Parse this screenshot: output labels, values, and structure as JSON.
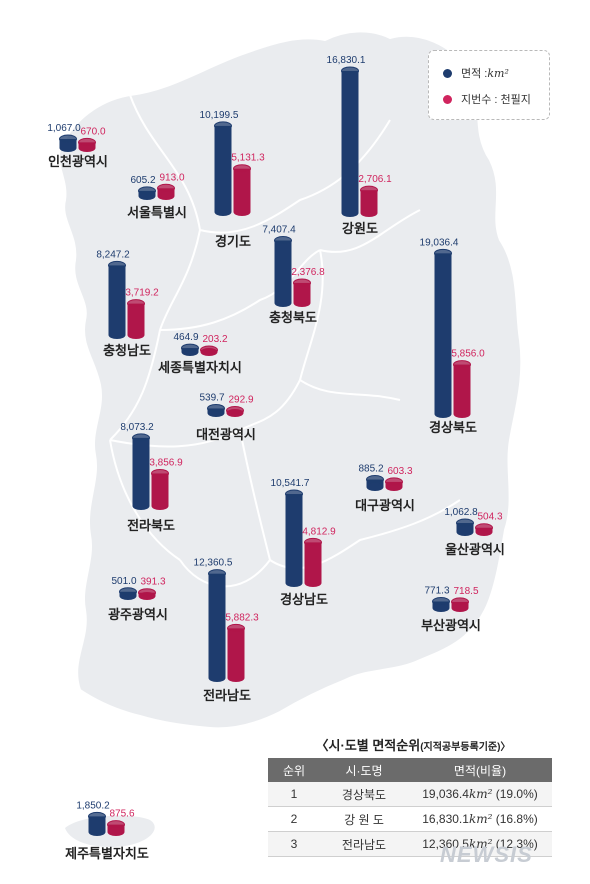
{
  "legend": {
    "area_label": "면적 : ",
    "area_unit": "km²",
    "parcel_label": "지번수 : 천필지"
  },
  "colors": {
    "area": "#1e3c6e",
    "parcels": "#b0164a",
    "area_text": "#1e3c6e",
    "parcel_text": "#d0245e",
    "map": "#eaecef",
    "map_border": "#ffffff"
  },
  "chart_data": {
    "type": "bar",
    "series": [
      {
        "name": "면적",
        "unit": "km²",
        "key": "area"
      },
      {
        "name": "지번수",
        "unit": "천필지",
        "key": "parcels"
      }
    ],
    "regions": [
      {
        "name": "인천광역시",
        "area": "1,067.0",
        "parcels": "670.0"
      },
      {
        "name": "서울특별시",
        "area": "605.2",
        "parcels": "913.0"
      },
      {
        "name": "경기도",
        "area": "10,199.5",
        "parcels": "5,131.3"
      },
      {
        "name": "강원도",
        "area": "16,830.1",
        "parcels": "2,706.1"
      },
      {
        "name": "충청북도",
        "area": "7,407.4",
        "parcels": "2,376.8"
      },
      {
        "name": "충청남도",
        "area": "8,247.2",
        "parcels": "3,719.2"
      },
      {
        "name": "세종특별자치시",
        "area": "464.9",
        "parcels": "203.2"
      },
      {
        "name": "대전광역시",
        "area": "539.7",
        "parcels": "292.9"
      },
      {
        "name": "경상북도",
        "area": "19,036.4",
        "parcels": "5,856.0"
      },
      {
        "name": "전라북도",
        "area": "8,073.2",
        "parcels": "3,856.9"
      },
      {
        "name": "대구광역시",
        "area": "885.2",
        "parcels": "603.3"
      },
      {
        "name": "울산광역시",
        "area": "1,062.8",
        "parcels": "504.3"
      },
      {
        "name": "경상남도",
        "area": "10,541.7",
        "parcels": "4,812.9"
      },
      {
        "name": "광주광역시",
        "area": "501.0",
        "parcels": "391.3"
      },
      {
        "name": "전라남도",
        "area": "12,360.5",
        "parcels": "5,882.3"
      },
      {
        "name": "부산광역시",
        "area": "771.3",
        "parcels": "718.5"
      },
      {
        "name": "제주특별자치도",
        "area": "1,850.2",
        "parcels": "875.6"
      }
    ]
  },
  "ranking": {
    "title": "〈시·도별 면적순위",
    "subtitle": "(지적공부등록기준)〉",
    "headers": [
      "순위",
      "시·도명",
      "면적(비율)"
    ],
    "rows": [
      {
        "rank": "1",
        "name": "경상북도",
        "value": "19,036.4",
        "unit": "km²",
        "pct": " (19.0%)"
      },
      {
        "rank": "2",
        "name": "강 원 도",
        "value": "16,830.1",
        "unit": "km²",
        "pct": " (16.8%)"
      },
      {
        "rank": "3",
        "name": "전라남도",
        "value": "12,360.5",
        "unit": "km²",
        "pct": " (12.3%)"
      }
    ]
  },
  "watermark": "NEWSIS"
}
